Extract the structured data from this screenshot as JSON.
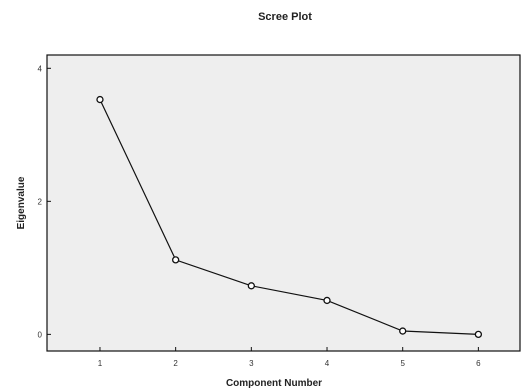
{
  "chart_data": {
    "type": "line",
    "title": "Scree Plot",
    "xlabel": "Component Number",
    "ylabel": "Eigenvalue",
    "x": [
      1,
      2,
      3,
      4,
      5,
      6
    ],
    "series": [
      {
        "values": [
          3.53,
          1.12,
          0.73,
          0.51,
          0.05,
          0.0
        ]
      }
    ],
    "xlim": [
      0.3,
      6.55
    ],
    "ylim": [
      -0.25,
      4.2
    ],
    "yticks": [
      "0",
      "2",
      "4"
    ],
    "xticks": [
      "1",
      "2",
      "3",
      "4",
      "5",
      "6"
    ],
    "grid": false,
    "plot_background": "#eeeeee",
    "line_color": "#111111",
    "marker": "open-circle"
  }
}
